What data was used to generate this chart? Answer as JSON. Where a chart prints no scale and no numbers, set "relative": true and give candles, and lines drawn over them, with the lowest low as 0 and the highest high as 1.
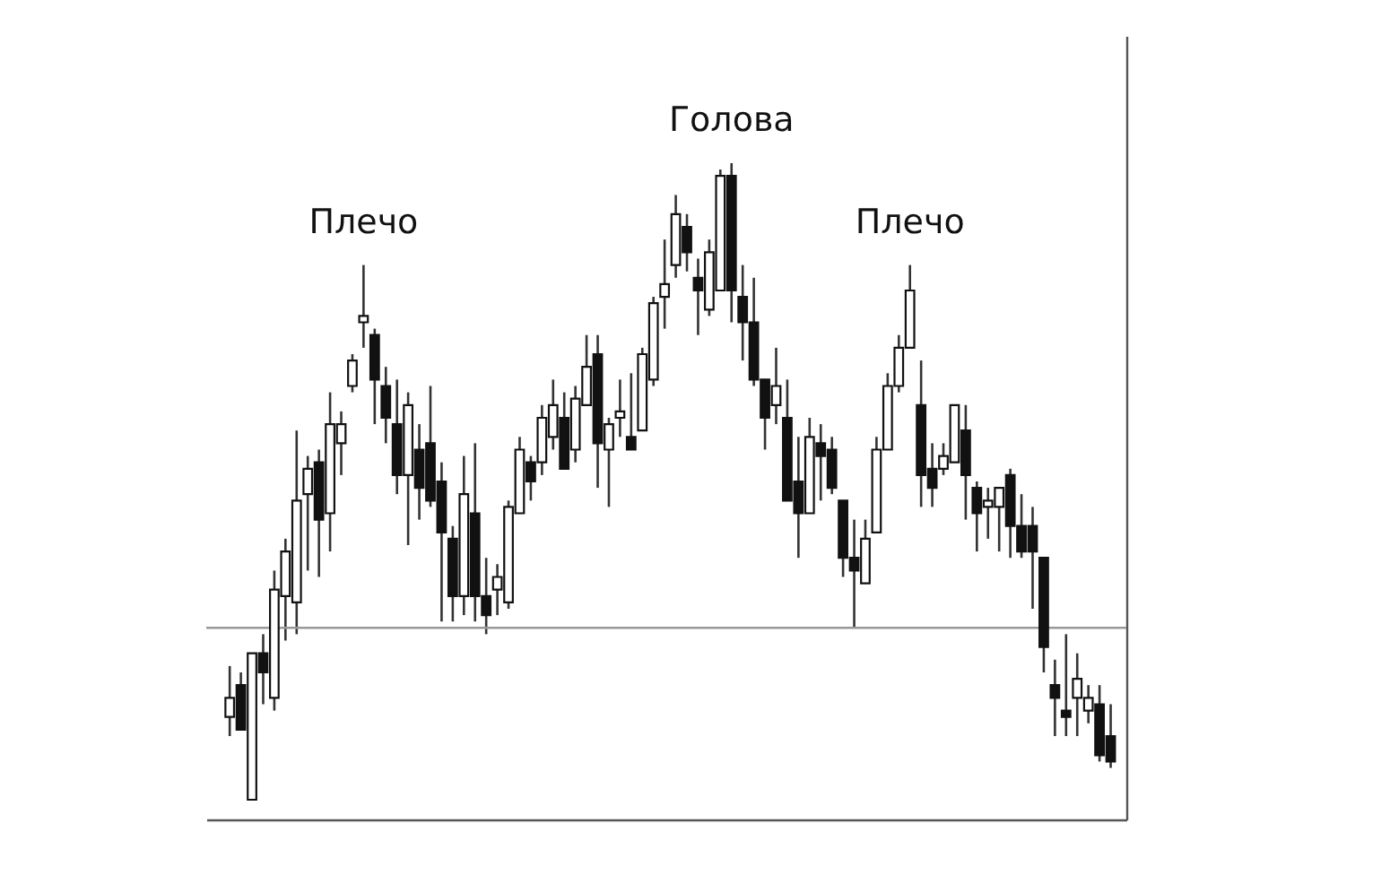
{
  "chart_data": {
    "type": "candlestick",
    "relative": true,
    "tick_labels": false,
    "grid": false,
    "categories": [
      null,
      null,
      null,
      null,
      null,
      null,
      null,
      null,
      null,
      null,
      null,
      null,
      null,
      null,
      null,
      null,
      null,
      null,
      null,
      null,
      null,
      null,
      null,
      null,
      null,
      null,
      null,
      null,
      null,
      null,
      null,
      null,
      null,
      null,
      null,
      null,
      null,
      null,
      null,
      null,
      null,
      null,
      null,
      null,
      null,
      null,
      null,
      null,
      null,
      null,
      null,
      null,
      null,
      null,
      null,
      null,
      null,
      null,
      null,
      null,
      null,
      null,
      null,
      null,
      null,
      null,
      null,
      null,
      null,
      null,
      null,
      null,
      null,
      null,
      null,
      null,
      null,
      null,
      null,
      null
    ],
    "ohlc": [
      [
        0.13,
        0.21,
        0.1,
        0.16
      ],
      [
        0.18,
        0.2,
        0.11,
        0.11
      ],
      [
        0.0,
        0.23,
        0.0,
        0.23
      ],
      [
        0.23,
        0.26,
        0.15,
        0.2
      ],
      [
        0.16,
        0.36,
        0.14,
        0.33
      ],
      [
        0.32,
        0.41,
        0.25,
        0.39
      ],
      [
        0.31,
        0.58,
        0.26,
        0.47
      ],
      [
        0.48,
        0.54,
        0.36,
        0.52
      ],
      [
        0.53,
        0.55,
        0.35,
        0.44
      ],
      [
        0.45,
        0.64,
        0.39,
        0.59
      ],
      [
        0.56,
        0.61,
        0.51,
        0.59
      ],
      [
        0.65,
        0.7,
        0.64,
        0.69
      ],
      [
        0.75,
        0.84,
        0.71,
        0.76
      ],
      [
        0.73,
        0.74,
        0.59,
        0.66
      ],
      [
        0.65,
        0.68,
        0.56,
        0.6
      ],
      [
        0.59,
        0.66,
        0.48,
        0.51
      ],
      [
        0.51,
        0.64,
        0.4,
        0.62
      ],
      [
        0.55,
        0.59,
        0.44,
        0.49
      ],
      [
        0.56,
        0.65,
        0.46,
        0.47
      ],
      [
        0.5,
        0.53,
        0.28,
        0.42
      ],
      [
        0.41,
        0.43,
        0.28,
        0.32
      ],
      [
        0.32,
        0.54,
        0.29,
        0.48
      ],
      [
        0.45,
        0.56,
        0.28,
        0.32
      ],
      [
        0.32,
        0.38,
        0.26,
        0.29
      ],
      [
        0.33,
        0.37,
        0.29,
        0.35
      ],
      [
        0.31,
        0.47,
        0.3,
        0.46
      ],
      [
        0.45,
        0.57,
        0.45,
        0.55
      ],
      [
        0.53,
        0.54,
        0.47,
        0.5
      ],
      [
        0.53,
        0.62,
        0.51,
        0.6
      ],
      [
        0.57,
        0.66,
        0.55,
        0.62
      ],
      [
        0.6,
        0.64,
        0.52,
        0.52
      ],
      [
        0.55,
        0.65,
        0.53,
        0.63
      ],
      [
        0.62,
        0.73,
        0.62,
        0.68
      ],
      [
        0.7,
        0.73,
        0.49,
        0.56
      ],
      [
        0.55,
        0.6,
        0.46,
        0.59
      ],
      [
        0.6,
        0.66,
        0.57,
        0.61
      ],
      [
        0.57,
        0.67,
        0.55,
        0.55
      ],
      [
        0.58,
        0.71,
        0.58,
        0.7
      ],
      [
        0.66,
        0.79,
        0.65,
        0.78
      ],
      [
        0.79,
        0.88,
        0.74,
        0.81
      ],
      [
        0.84,
        0.95,
        0.82,
        0.92
      ],
      [
        0.9,
        0.92,
        0.83,
        0.86
      ],
      [
        0.82,
        0.85,
        0.73,
        0.8
      ],
      [
        0.77,
        0.88,
        0.76,
        0.86
      ],
      [
        0.8,
        0.99,
        0.8,
        0.98
      ],
      [
        0.98,
        1.0,
        0.75,
        0.8
      ],
      [
        0.79,
        0.84,
        0.69,
        0.75
      ],
      [
        0.75,
        0.82,
        0.65,
        0.66
      ],
      [
        0.66,
        0.66,
        0.55,
        0.6
      ],
      [
        0.62,
        0.71,
        0.59,
        0.65
      ],
      [
        0.6,
        0.66,
        0.47,
        0.47
      ],
      [
        0.5,
        0.57,
        0.38,
        0.45
      ],
      [
        0.45,
        0.6,
        0.45,
        0.57
      ],
      [
        0.56,
        0.59,
        0.47,
        0.54
      ],
      [
        0.55,
        0.57,
        0.48,
        0.49
      ],
      [
        0.47,
        0.47,
        0.35,
        0.38
      ],
      [
        0.38,
        0.44,
        0.27,
        0.36
      ],
      [
        0.34,
        0.44,
        0.34,
        0.41
      ],
      [
        0.42,
        0.57,
        0.42,
        0.55
      ],
      [
        0.55,
        0.67,
        0.55,
        0.65
      ],
      [
        0.65,
        0.73,
        0.64,
        0.71
      ],
      [
        0.71,
        0.84,
        0.71,
        0.8
      ],
      [
        0.62,
        0.69,
        0.46,
        0.51
      ],
      [
        0.52,
        0.56,
        0.46,
        0.49
      ],
      [
        0.52,
        0.56,
        0.51,
        0.54
      ],
      [
        0.53,
        0.62,
        0.53,
        0.62
      ],
      [
        0.58,
        0.62,
        0.44,
        0.51
      ],
      [
        0.49,
        0.5,
        0.39,
        0.45
      ],
      [
        0.46,
        0.49,
        0.41,
        0.47
      ],
      [
        0.46,
        0.49,
        0.39,
        0.49
      ],
      [
        0.51,
        0.52,
        0.38,
        0.43
      ],
      [
        0.43,
        0.48,
        0.38,
        0.39
      ],
      [
        0.43,
        0.46,
        0.3,
        0.39
      ],
      [
        0.38,
        0.38,
        0.2,
        0.24
      ],
      [
        0.18,
        0.22,
        0.1,
        0.16
      ],
      [
        0.14,
        0.26,
        0.1,
        0.13
      ],
      [
        0.16,
        0.23,
        0.1,
        0.19
      ],
      [
        0.14,
        0.18,
        0.12,
        0.16
      ],
      [
        0.15,
        0.18,
        0.06,
        0.07
      ],
      [
        0.1,
        0.15,
        0.05,
        0.06
      ]
    ],
    "ref_lines": [
      {
        "axis": "y",
        "value": 0.27,
        "color": "#999999"
      }
    ],
    "annotations": [
      {
        "text": "Плечо",
        "y": 0.84
      },
      {
        "text": "Голова",
        "y": 1.0
      },
      {
        "text": "Плечо",
        "y": 0.84
      }
    ]
  }
}
